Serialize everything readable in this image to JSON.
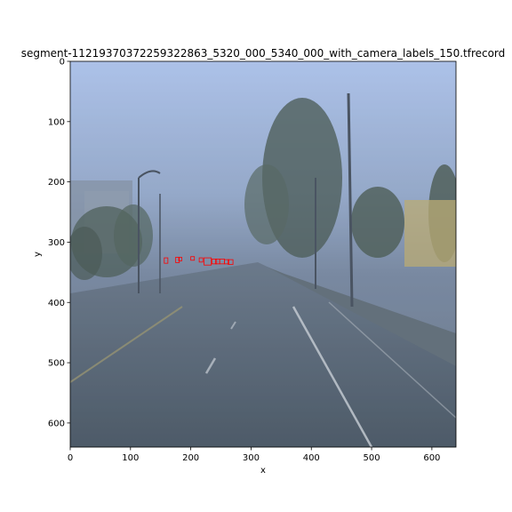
{
  "chart_data": {
    "type": "image",
    "title": "segment-11219370372259322863_5320_000_5340_000_with_camera_labels_150.tfrecord",
    "xlabel": "x",
    "ylabel": "y",
    "xlim": [
      0,
      640
    ],
    "ylim": [
      640,
      0
    ],
    "xticks": [
      0,
      100,
      200,
      300,
      400,
      500,
      600
    ],
    "yticks": [
      0,
      100,
      200,
      300,
      400,
      500,
      600
    ],
    "image_description_icon": "foggy-rainy-street-photo",
    "box_color": "#ff0000",
    "boxes": [
      {
        "x0": 156,
        "y0": 326,
        "x1": 162,
        "y1": 335
      },
      {
        "x0": 175,
        "y0": 325,
        "x1": 181,
        "y1": 334
      },
      {
        "x0": 180,
        "y0": 325,
        "x1": 185,
        "y1": 331
      },
      {
        "x0": 200,
        "y0": 324,
        "x1": 206,
        "y1": 330
      },
      {
        "x0": 214,
        "y0": 326,
        "x1": 220,
        "y1": 333
      },
      {
        "x0": 222,
        "y0": 326,
        "x1": 234,
        "y1": 338
      },
      {
        "x0": 235,
        "y0": 328,
        "x1": 243,
        "y1": 336
      },
      {
        "x0": 241,
        "y0": 328,
        "x1": 248,
        "y1": 336
      },
      {
        "x0": 248,
        "y0": 328,
        "x1": 256,
        "y1": 336
      },
      {
        "x0": 256,
        "y0": 329,
        "x1": 263,
        "y1": 336
      },
      {
        "x0": 262,
        "y0": 329,
        "x1": 270,
        "y1": 337
      }
    ]
  }
}
